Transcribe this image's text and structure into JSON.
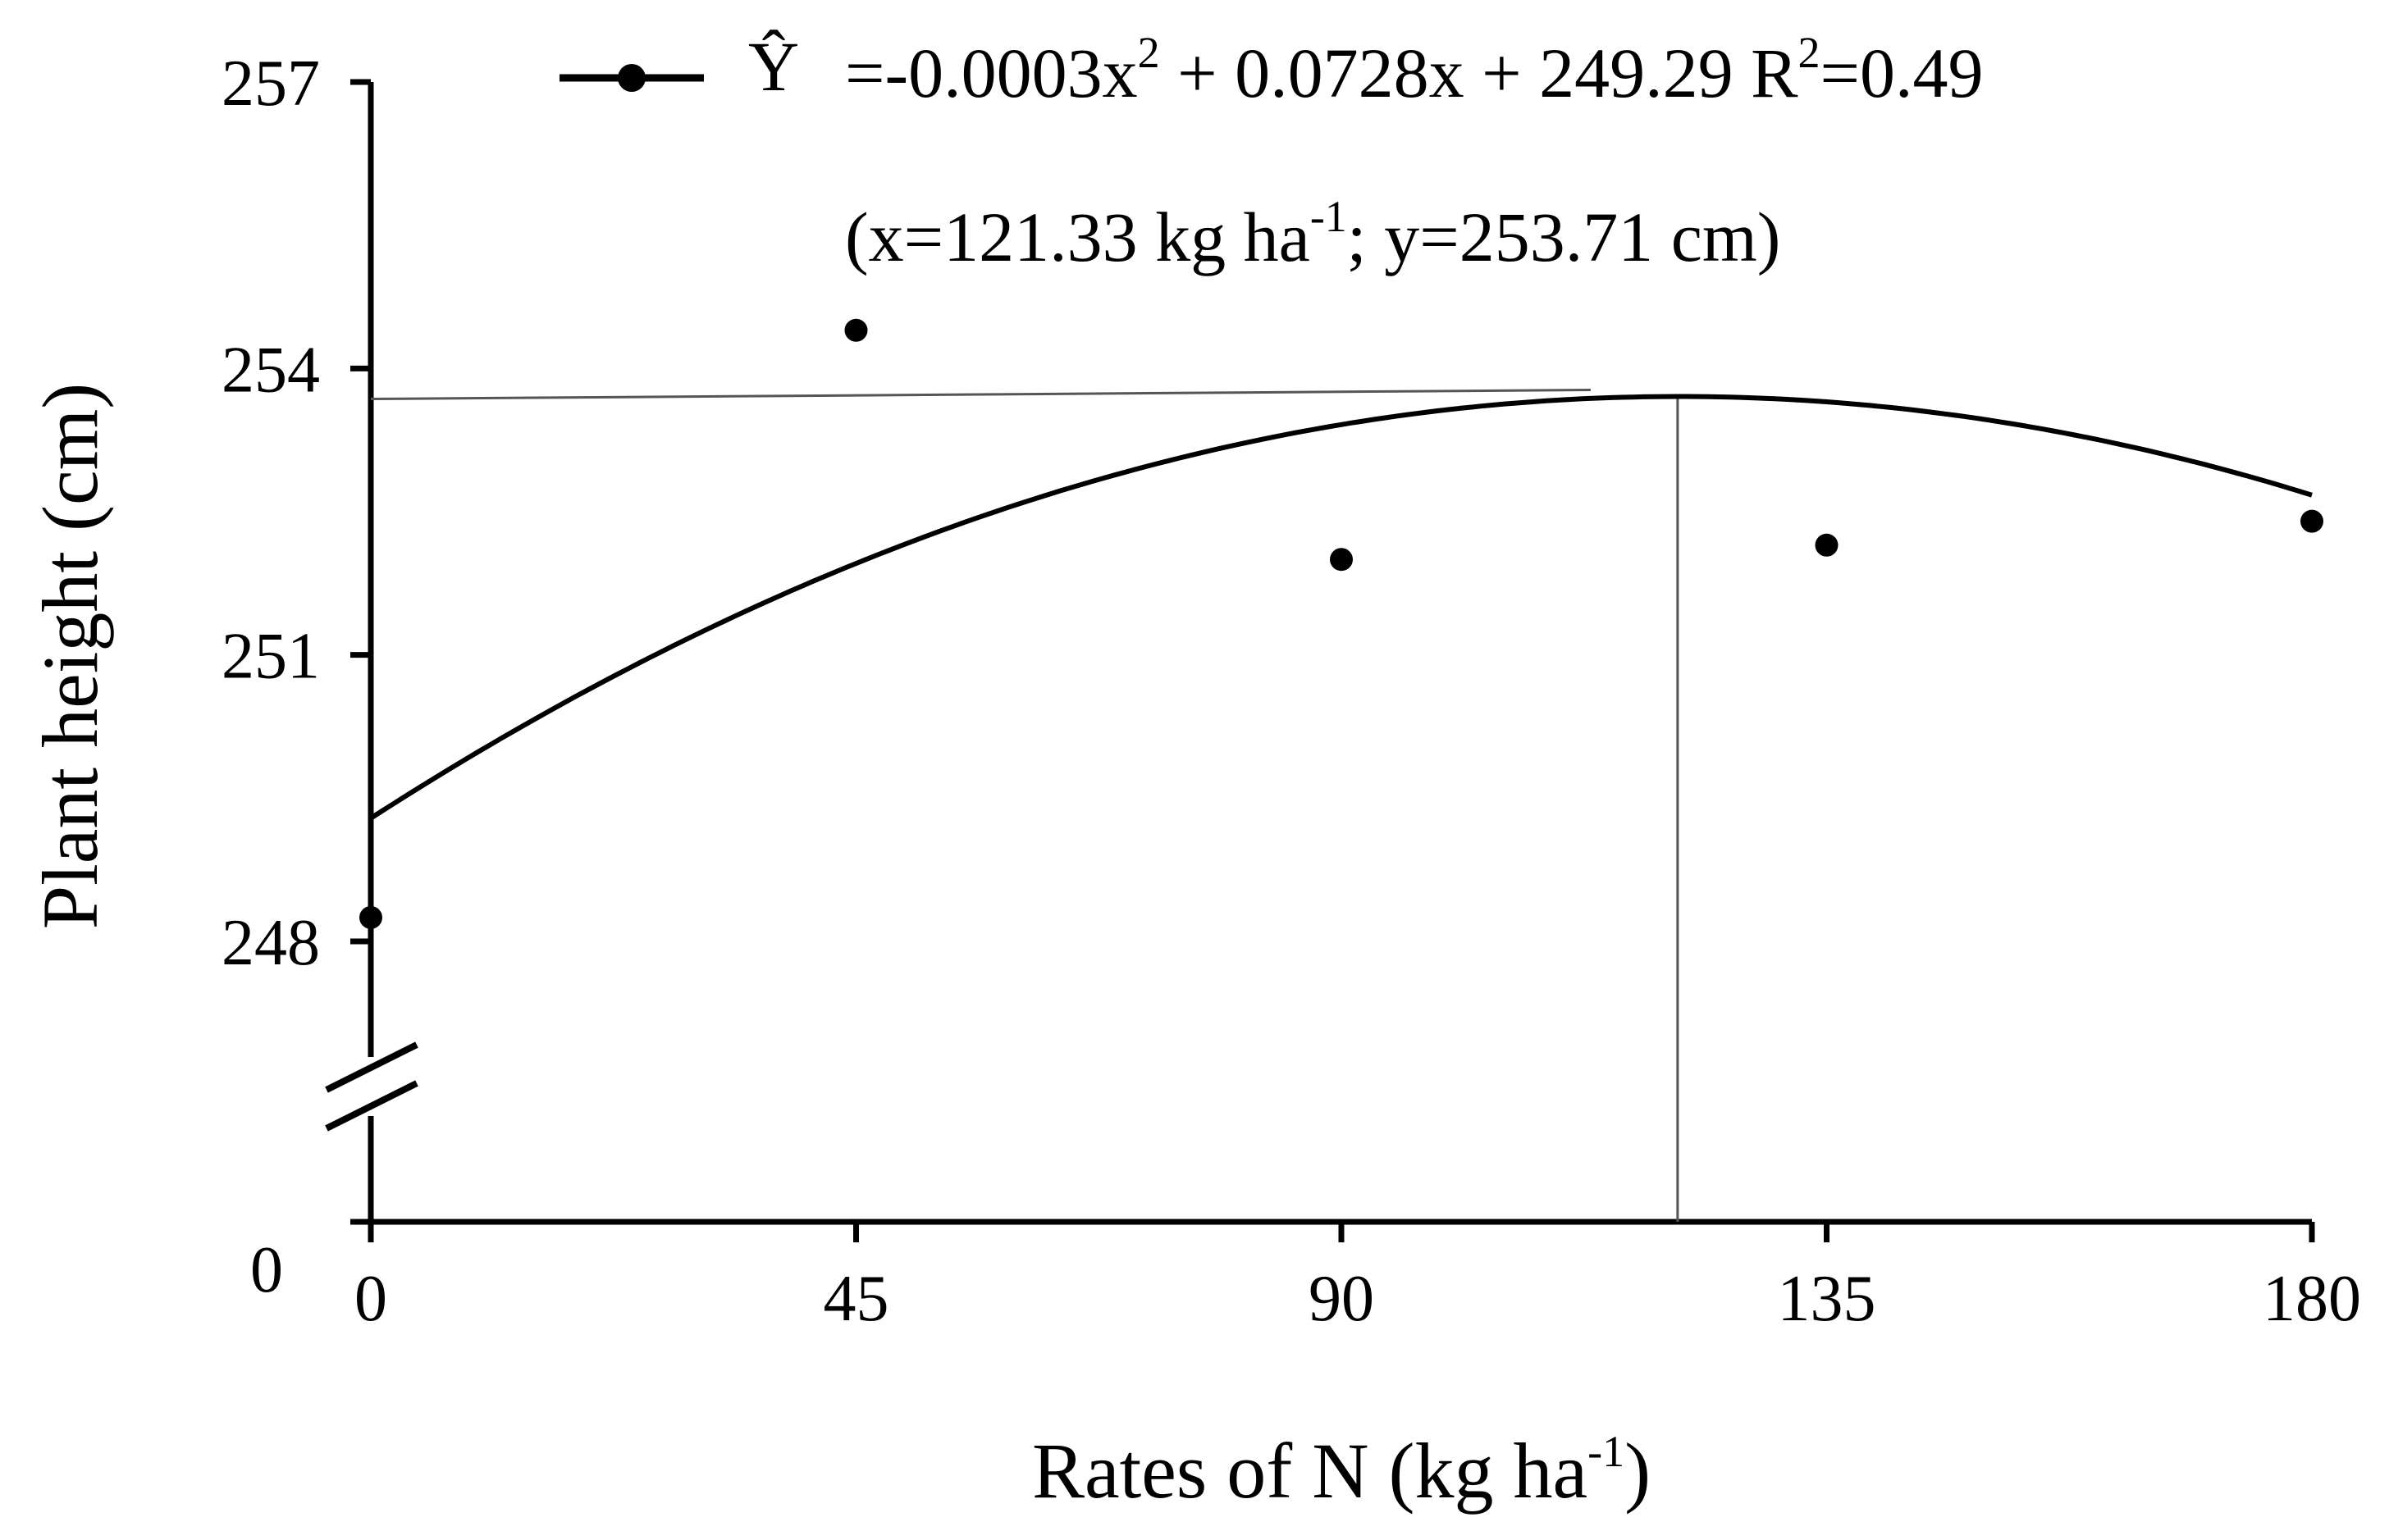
{
  "chart_data": {
    "type": "scatter",
    "xlabel_parts": [
      "Rates of N (kg ha",
      "-1",
      ")"
    ],
    "ylabel": "Plant height (cm)",
    "x": [
      0,
      45,
      90,
      135,
      180
    ],
    "y": [
      248.25,
      254.4,
      252.0,
      252.15,
      252.4
    ],
    "x_ticks": [
      "0",
      "45",
      "90",
      "135",
      "180"
    ],
    "y_ticks": [
      {
        "value": 257,
        "label": "257"
      },
      {
        "value": 254,
        "label": "254"
      },
      {
        "value": 251,
        "label": "251"
      },
      {
        "value": 248,
        "label": "248"
      }
    ],
    "y_zero_label": "0",
    "y_axis_break": true,
    "xlim": [
      0,
      180
    ],
    "ylim": [
      248,
      257
    ],
    "grid": false,
    "fit": {
      "coefficients": {
        "a": -0.0003,
        "b": 0.0728,
        "c": 249.29
      },
      "equation_parts": [
        "=-0.0003x",
        "2",
        " + 0.0728x + 249.29 R",
        "2",
        "=0.49"
      ],
      "optimum_parts": [
        "(x=121.33 kg ha",
        "-1",
        "; y=253.71 cm)"
      ],
      "optimum_x": 121.33,
      "optimum_y": 253.71
    },
    "legend": {
      "symbol_label": "Ŷ",
      "placement": "top"
    },
    "colors": {
      "marker": "#000000",
      "line": "#000000",
      "reference_line": "#555555"
    }
  }
}
